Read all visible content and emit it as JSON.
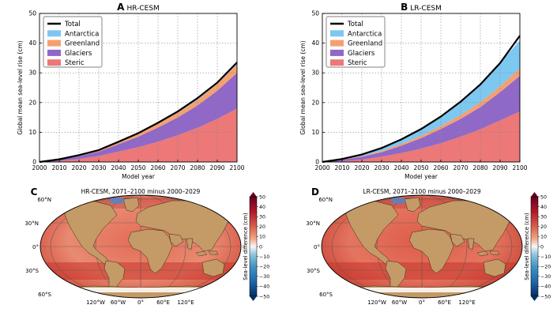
{
  "chart_data": [
    {
      "type": "area",
      "panel_letter": "A",
      "title": "HR-CESM",
      "xlabel": "Model year",
      "ylabel": "Global mean sea-level rise (cm)",
      "xlim": [
        2000,
        2100
      ],
      "ylim": [
        0,
        50
      ],
      "xticks": [
        "2000",
        "2010",
        "2020",
        "2030",
        "2040",
        "2050",
        "2060",
        "2070",
        "2080",
        "2090",
        "2100"
      ],
      "yticks": [
        "0",
        "10",
        "20",
        "30",
        "40",
        "50"
      ],
      "grid": true,
      "legend_position": "top-left",
      "legend": [
        "Total",
        "Antarctica",
        "Greenland",
        "Glaciers",
        "Steric"
      ],
      "x": [
        2000,
        2010,
        2020,
        2030,
        2040,
        2050,
        2060,
        2070,
        2080,
        2090,
        2100
      ],
      "series": [
        {
          "name": "Steric",
          "values": [
            0,
            0.3,
            1.0,
            2.0,
            3.5,
            5.0,
            6.8,
            9.0,
            11.5,
            14.5,
            18.0
          ]
        },
        {
          "name": "Glaciers",
          "values": [
            0,
            0.5,
            1.0,
            1.5,
            2.5,
            3.5,
            4.8,
            6.0,
            7.5,
            9.5,
            12.0
          ]
        },
        {
          "name": "Greenland",
          "values": [
            0,
            0.1,
            0.3,
            0.5,
            0.8,
            1.0,
            1.3,
            1.6,
            1.9,
            2.3,
            2.8
          ]
        },
        {
          "name": "Antarctica",
          "values": [
            0,
            0.05,
            0.1,
            0.2,
            0.2,
            0.3,
            0.3,
            0.4,
            0.5,
            0.6,
            0.7
          ]
        },
        {
          "name": "Total",
          "values": [
            0,
            0.9,
            2.3,
            4.0,
            6.8,
            9.7,
            13.2,
            17.0,
            21.5,
            26.7,
            33.5
          ]
        }
      ]
    },
    {
      "type": "area",
      "panel_letter": "B",
      "title": "LR-CESM",
      "xlabel": "Model year",
      "ylabel": "Global mean sea-level rise (cm)",
      "xlim": [
        2000,
        2100
      ],
      "ylim": [
        0,
        50
      ],
      "xticks": [
        "2000",
        "2010",
        "2020",
        "2030",
        "2040",
        "2050",
        "2060",
        "2070",
        "2080",
        "2090",
        "2100"
      ],
      "yticks": [
        "0",
        "10",
        "20",
        "30",
        "40",
        "50"
      ],
      "grid": true,
      "legend_position": "top-left",
      "legend": [
        "Total",
        "Antarctica",
        "Greenland",
        "Glaciers",
        "Steric"
      ],
      "x": [
        2000,
        2010,
        2020,
        2030,
        2040,
        2050,
        2060,
        2070,
        2080,
        2090,
        2100
      ],
      "series": [
        {
          "name": "Steric",
          "values": [
            0,
            0.2,
            0.8,
            1.8,
            3.0,
            4.5,
            6.3,
            8.5,
            11.0,
            14.0,
            17.0
          ]
        },
        {
          "name": "Glaciers",
          "values": [
            0,
            0.5,
            1.0,
            1.5,
            2.5,
            3.5,
            4.8,
            6.0,
            7.5,
            9.5,
            12.0
          ]
        },
        {
          "name": "Greenland",
          "values": [
            0,
            0.1,
            0.2,
            0.4,
            0.6,
            0.8,
            1.0,
            1.3,
            1.6,
            2.0,
            2.5
          ]
        },
        {
          "name": "Antarctica",
          "values": [
            0,
            0.2,
            0.5,
            1.0,
            1.5,
            2.3,
            3.2,
            4.5,
            6.0,
            7.8,
            9.5
          ]
        },
        {
          "name": "Total",
          "values": [
            0,
            1.0,
            2.5,
            4.7,
            7.6,
            11.1,
            15.3,
            20.3,
            26.1,
            33.3,
            42.5
          ]
        }
      ]
    },
    {
      "type": "heatmap",
      "panel_letter": "C",
      "title": "HR-CESM, 2071–2100 minus 2000–2029",
      "colorbar_label": "Sea-level difference (cm)",
      "colorbar_ticks": [
        "50",
        "40",
        "30",
        "20",
        "10",
        "0",
        "−10",
        "−20",
        "−30",
        "−40",
        "−50"
      ],
      "lat_labels": [
        "60°N",
        "30°N",
        "0°",
        "30°S",
        "60°S"
      ],
      "lon_labels": [
        "120°W",
        "60°W",
        "0°",
        "60°E",
        "120°E"
      ]
    },
    {
      "type": "heatmap",
      "panel_letter": "D",
      "title": "LR-CESM, 2071–2100 minus 2000–2029",
      "colorbar_label": "Sea-level difference (cm)",
      "colorbar_ticks": [
        "50",
        "40",
        "30",
        "20",
        "10",
        "0",
        "−10",
        "−20",
        "−30",
        "−40",
        "−50"
      ],
      "lat_labels": [
        "60°N",
        "30°N",
        "0°",
        "30°S",
        "60°S"
      ],
      "lon_labels": [
        "120°W",
        "60°W",
        "0°",
        "60°E",
        "120°E"
      ]
    }
  ],
  "colors": {
    "total": "#000000",
    "antarctica": "#7cc8f0",
    "greenland": "#f4a070",
    "glaciers": "#9068c8",
    "steric": "#ec7878",
    "land": "#c49a66",
    "ocean_warm": "#d54a3c",
    "ocean_light": "#f2b09a",
    "ice": "#ffffff"
  }
}
